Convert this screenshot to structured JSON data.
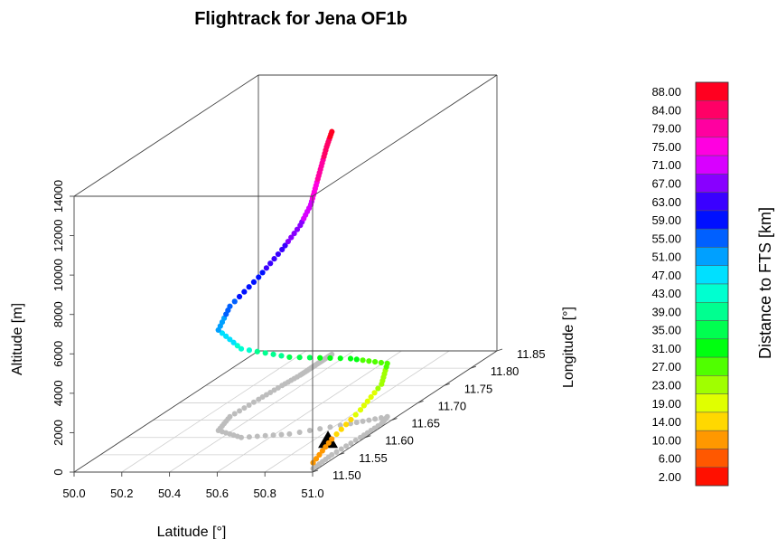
{
  "chart_data": {
    "type": "scatter3d",
    "title": "Flightrack for Jena OF1b",
    "xlabel": "Latitude [°]",
    "ylabel": "Longitude [°]",
    "zlabel": "Altitude [m]",
    "xlim": [
      50.0,
      51.0
    ],
    "ylim": [
      11.5,
      11.85
    ],
    "zlim": [
      0,
      14000
    ],
    "x_ticks": [
      "50.0",
      "50.2",
      "50.4",
      "50.6",
      "50.8",
      "51.0"
    ],
    "y_ticks": [
      "11.50",
      "11.55",
      "11.60",
      "11.65",
      "11.70",
      "11.75",
      "11.80",
      "11.85"
    ],
    "z_ticks": [
      "0",
      "2000",
      "4000",
      "6000",
      "8000",
      "10000",
      "12000",
      "14000"
    ],
    "grid": true,
    "colorbar": {
      "label": "Distance to FTS [km]",
      "ticks": [
        "88.00",
        "84.00",
        "79.00",
        "75.00",
        "71.00",
        "67.00",
        "63.00",
        "59.00",
        "55.00",
        "51.00",
        "47.00",
        "43.00",
        "39.00",
        "35.00",
        "31.00",
        "27.00",
        "23.00",
        "19.00",
        "14.00",
        "10.00",
        "6.00",
        "2.00"
      ],
      "colors": [
        "#ff0020",
        "#ff0066",
        "#ff00a0",
        "#ff00e0",
        "#d800ff",
        "#8800ff",
        "#3a00ff",
        "#0010ff",
        "#0060ff",
        "#00a0ff",
        "#00e0ff",
        "#00ffd0",
        "#00ff90",
        "#00ff50",
        "#00ff10",
        "#50ff00",
        "#a0ff00",
        "#e0ff00",
        "#ffd800",
        "#ff9800",
        "#ff5800",
        "#ff1000"
      ]
    },
    "station_marker": "FTS triangle",
    "series": [
      {
        "role": "flight-track",
        "points": [
          {
            "lat": 50.98,
            "lon": 11.51,
            "alt": 300,
            "d": 10
          },
          {
            "lat": 50.97,
            "lon": 11.55,
            "alt": 800,
            "d": 12
          },
          {
            "lat": 50.98,
            "lon": 11.6,
            "alt": 1400,
            "d": 18
          },
          {
            "lat": 50.98,
            "lon": 11.64,
            "alt": 2000,
            "d": 22
          },
          {
            "lat": 50.96,
            "lon": 11.66,
            "alt": 2700,
            "d": 26
          },
          {
            "lat": 50.85,
            "lon": 11.64,
            "alt": 3300,
            "d": 30
          },
          {
            "lat": 50.66,
            "lon": 11.61,
            "alt": 3900,
            "d": 36
          },
          {
            "lat": 50.48,
            "lon": 11.6,
            "alt": 4500,
            "d": 43
          },
          {
            "lat": 50.34,
            "lon": 11.62,
            "alt": 5100,
            "d": 50
          },
          {
            "lat": 50.3,
            "lon": 11.66,
            "alt": 5600,
            "d": 56
          },
          {
            "lat": 50.31,
            "lon": 11.71,
            "alt": 6200,
            "d": 60
          },
          {
            "lat": 50.32,
            "lon": 11.75,
            "alt": 6900,
            "d": 64
          },
          {
            "lat": 50.33,
            "lon": 11.78,
            "alt": 7600,
            "d": 68
          },
          {
            "lat": 50.33,
            "lon": 11.8,
            "alt": 8300,
            "d": 72
          },
          {
            "lat": 50.33,
            "lon": 11.81,
            "alt": 9100,
            "d": 76
          },
          {
            "lat": 50.33,
            "lon": 11.82,
            "alt": 9900,
            "d": 80
          },
          {
            "lat": 50.33,
            "lon": 11.83,
            "alt": 10700,
            "d": 84
          },
          {
            "lat": 50.33,
            "lon": 11.84,
            "alt": 11300,
            "d": 88
          }
        ]
      },
      {
        "role": "ground-projection",
        "points": [
          {
            "lat": 50.98,
            "lon": 11.51
          },
          {
            "lat": 50.97,
            "lon": 11.55
          },
          {
            "lat": 50.98,
            "lon": 11.6
          },
          {
            "lat": 50.98,
            "lon": 11.64
          },
          {
            "lat": 50.96,
            "lon": 11.66
          },
          {
            "lat": 50.85,
            "lon": 11.64
          },
          {
            "lat": 50.66,
            "lon": 11.61
          },
          {
            "lat": 50.48,
            "lon": 11.6
          },
          {
            "lat": 50.34,
            "lon": 11.62
          },
          {
            "lat": 50.3,
            "lon": 11.66
          },
          {
            "lat": 50.31,
            "lon": 11.71
          },
          {
            "lat": 50.32,
            "lon": 11.75
          },
          {
            "lat": 50.33,
            "lon": 11.78
          },
          {
            "lat": 50.33,
            "lon": 11.8
          },
          {
            "lat": 50.33,
            "lon": 11.81
          },
          {
            "lat": 50.33,
            "lon": 11.82
          },
          {
            "lat": 50.33,
            "lon": 11.83
          },
          {
            "lat": 50.33,
            "lon": 11.84
          }
        ]
      }
    ],
    "fts_location": {
      "lat": 50.91,
      "lon": 11.57
    }
  }
}
